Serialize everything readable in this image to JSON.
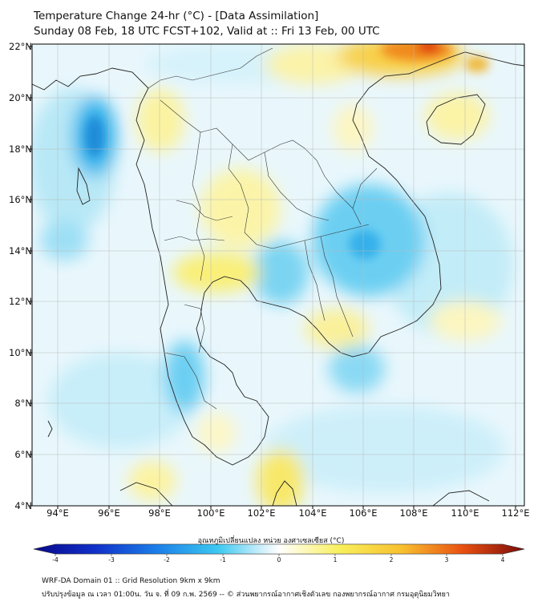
{
  "title": {
    "line1": "Temperature Change 24-hr (°C) - [Data Assimilation]",
    "line2": "Sunday 08 Feb, 18 UTC FCST+102, Valid at :: Fri 13 Feb, 00 UTC"
  },
  "map": {
    "lat_labels": [
      "22°N",
      "20°N",
      "18°N",
      "16°N",
      "14°N",
      "12°N",
      "10°N",
      "8°N",
      "6°N",
      "4°N"
    ],
    "lon_labels": [
      "94°E",
      "96°E",
      "98°E",
      "100°E",
      "102°E",
      "104°E",
      "106°E",
      "108°E",
      "110°E",
      "112°E"
    ],
    "lat_range": [
      4,
      22.3
    ],
    "lon_range": [
      93.1,
      112.5
    ]
  },
  "colorbar": {
    "label": "อุณหภูมิเปลี่ยนแปลง หน่วย องศาเซลเซียส (°C)",
    "ticks": [
      "-4",
      "-3",
      "-2",
      "-1",
      "0",
      "1",
      "2",
      "3",
      "4"
    ],
    "range": [
      -4,
      4
    ],
    "colors": {
      "cold_end": "#08088a",
      "cold": "#1450d8",
      "cool": "#3cc8f0",
      "neutral": "#ffffff",
      "warm": "#f8ef5a",
      "hot": "#f08a1c",
      "hot_end": "#7a0a0a"
    }
  },
  "footer": {
    "line1": "WRF-DA Domain 01 :: Grid Resolution 9km x 9km",
    "line2": "ปรับปรุงข้อมูล ณ เวลา 01:00น. วัน จ. ที่ 09 ก.พ. 2569 -- © ส่วนพยากรณ์อากาศเชิงตัวเลข กองพยากรณ์อากาศ กรมอุตุนิยมวิทยา"
  }
}
